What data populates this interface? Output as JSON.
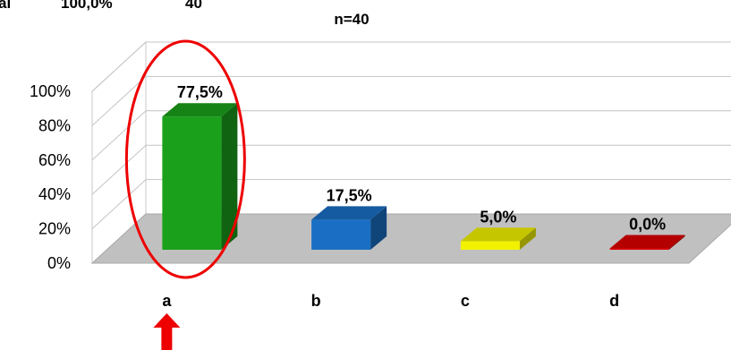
{
  "header_fragment": {
    "label": "al",
    "percent": "100,0%",
    "count": "40"
  },
  "chart_data": {
    "type": "bar",
    "title": "n=40",
    "xlabel": "",
    "ylabel": "",
    "categories": [
      "a",
      "b",
      "c",
      "d"
    ],
    "values": [
      77.5,
      17.5,
      5.0,
      0.0
    ],
    "data_labels": [
      "77,5%",
      "17,5%",
      "5,0%",
      "0,0%"
    ],
    "colors": [
      "#1aa01a",
      "#1a6fc4",
      "#f2f200",
      "#dd0000"
    ],
    "yticks": [
      "0%",
      "20%",
      "40%",
      "60%",
      "80%",
      "100%"
    ],
    "ylim": [
      0,
      100
    ],
    "three_d": true,
    "grid": true,
    "legend": "none"
  },
  "annotations": {
    "highlight_ellipse_target": "a",
    "arrow_target": "a",
    "color": "#ee0000"
  }
}
